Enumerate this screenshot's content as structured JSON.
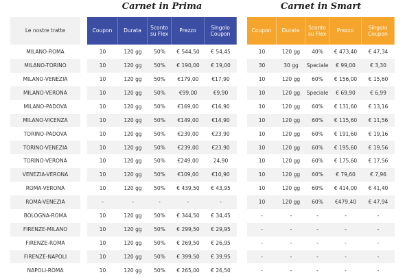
{
  "prima": {
    "title": "Carnet in Prima",
    "headers": [
      "Coupon",
      "Durata",
      "Sconto su Flex",
      "Prezzo",
      "Singolo Coupon"
    ]
  },
  "smart": {
    "title": "Carnet in Smart",
    "headers": [
      "Coupon",
      "Durata",
      "Sconto su Flex",
      "Prezzo",
      "Singolo Coupon"
    ]
  },
  "route_header": "Le nostre tratte",
  "rows": [
    [
      "MILANO-ROMA",
      "10",
      "120 gg",
      "50%",
      "€ 544,50",
      "€ 54,45",
      "10",
      "120 gg",
      "40%",
      "€ 473,40",
      "€ 47,34"
    ],
    [
      "MILANO-TORINO",
      "10",
      "120 gg",
      "50%",
      "€ 190,00",
      "€ 19,00",
      "30",
      "30 gg",
      "Speciale",
      "€ 99,00",
      "€ 3,30"
    ],
    [
      "MILANO-VENEZIA",
      "10",
      "120 gg",
      "50%",
      "€179,00",
      "€17,90",
      "10",
      "120 gg",
      "60%",
      "€ 156,00",
      "€ 15,60"
    ],
    [
      "MILANO-VERONA",
      "10",
      "120 gg",
      "50%",
      "€99,00",
      "€9,90",
      "10",
      "120 gg",
      "Speciale",
      "€ 69,90",
      "€ 6,99"
    ],
    [
      "MILANO-PADOVA",
      "10",
      "120 gg",
      "50%",
      "€169,00",
      "€16,90",
      "10",
      "120 gg",
      "60%",
      "€ 131,60",
      "€ 13,16"
    ],
    [
      "MILANO-VICENZA",
      "10",
      "120 gg",
      "50%",
      "€149,00",
      "€14,90",
      "10",
      "120 gg",
      "60%",
      "€ 115,60",
      "€ 11,56"
    ],
    [
      "TORINO-PADOVA",
      "10",
      "120 gg",
      "50%",
      "€239,00",
      "€23,90",
      "10",
      "120 gg",
      "60%",
      "€ 191,60",
      "€ 19,16"
    ],
    [
      "TORINO-VENEZIA",
      "10",
      "120 gg",
      "50%",
      "€239,00",
      "€23,90",
      "10",
      "120 gg",
      "60%",
      "€ 195,60",
      "€ 19,56"
    ],
    [
      "TORINO-VERONA",
      "10",
      "120 gg",
      "50%",
      "€249,00",
      "24,90",
      "10",
      "120 gg",
      "60%",
      "€ 175,60",
      "€ 17,56"
    ],
    [
      "VENEZIA-VERONA",
      "10",
      "120 gg",
      "50%",
      "€109,00",
      "€10,90",
      "10",
      "120 gg",
      "60%",
      "€ 79,60",
      "€ 7,96"
    ],
    [
      "ROMA-VERONA",
      "10",
      "120 gg",
      "50%",
      "€ 439,50",
      "€ 43,95",
      "10",
      "120 gg",
      "60%",
      "€ 414,00",
      "€ 41,40"
    ],
    [
      "ROMA-VENEZIA",
      "-",
      "-",
      "-",
      "-",
      "-",
      "10",
      "120 gg",
      "60%",
      "€479,40",
      "€ 47,94"
    ],
    [
      "BOLOGNA-ROMA",
      "10",
      "120 gg",
      "50%",
      "€ 344,50",
      "€ 34,45",
      "-",
      "-",
      "-",
      "-",
      "-"
    ],
    [
      "FIRENZE-MILANO",
      "10",
      "120 gg",
      "50%",
      "€ 299,50",
      "€ 29,95",
      "-",
      "-",
      "-",
      "-",
      "-"
    ],
    [
      "FIRENZE-ROMA",
      "10",
      "120 gg",
      "50%",
      "€ 269,50",
      "€ 26,95",
      "-",
      "-",
      "-",
      "-",
      "-"
    ],
    [
      "FIRENZE-NAPOLI",
      "10",
      "120 gg",
      "50%",
      "€ 399,50",
      "€ 39,95",
      "-",
      "-",
      "-",
      "-",
      "-"
    ],
    [
      "NAPOLI-ROMA",
      "10",
      "120 gg",
      "50%",
      "€ 265,00",
      "€ 26,50",
      "-",
      "-",
      "-",
      "-",
      "-"
    ]
  ]
}
